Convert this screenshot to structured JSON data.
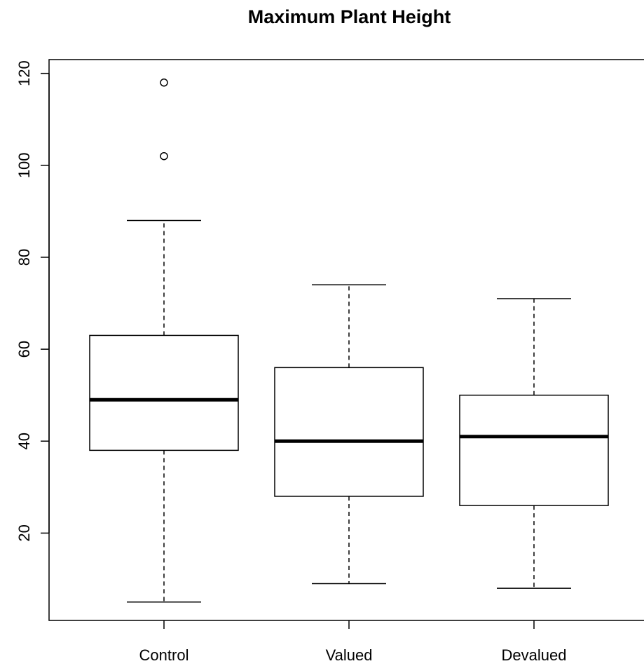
{
  "chart_data": {
    "type": "box",
    "title": "Maximum Plant Height",
    "xlabel": "",
    "ylabel": "",
    "categories": [
      "Control",
      "Valued",
      "Devalued"
    ],
    "ylim": [
      1,
      123
    ],
    "yticks": [
      20,
      40,
      60,
      80,
      100,
      120
    ],
    "grid": false,
    "boxes": [
      {
        "category": "Control",
        "whisker_low": 5,
        "q1": 38,
        "median": 49,
        "q3": 63,
        "whisker_high": 88,
        "outliers": [
          102,
          118
        ]
      },
      {
        "category": "Valued",
        "whisker_low": 9,
        "q1": 28,
        "median": 40,
        "q3": 56,
        "whisker_high": 74,
        "outliers": []
      },
      {
        "category": "Devalued",
        "whisker_low": 8,
        "q1": 26,
        "median": 41,
        "q3": 50,
        "whisker_high": 71,
        "outliers": []
      }
    ]
  }
}
